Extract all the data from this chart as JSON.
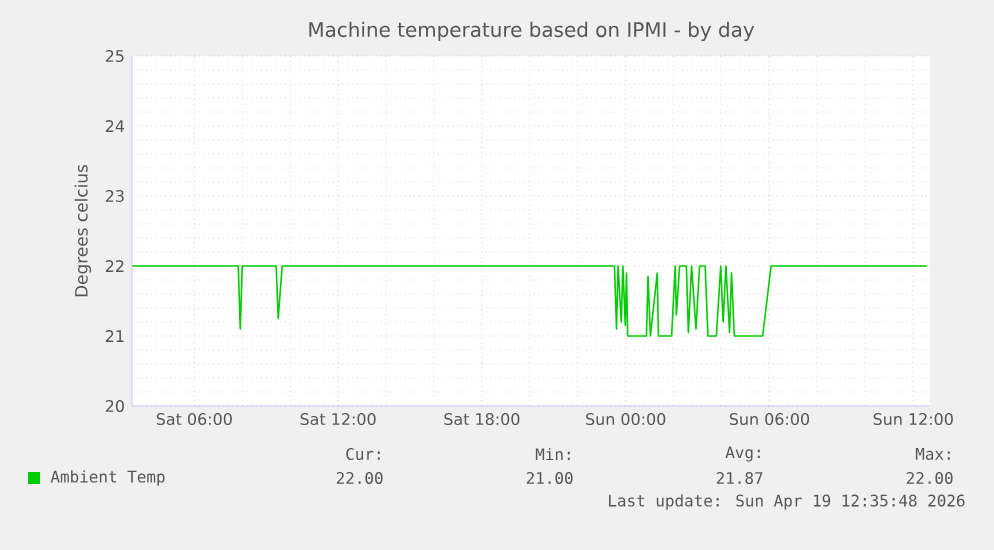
{
  "chart_data": {
    "type": "line",
    "title": "Machine temperature based on IPMI - by day",
    "ylabel": "Degrees celcius",
    "xlim": [
      "2026-04-18T03:24",
      "2026-04-19T12:42"
    ],
    "ylim": [
      20,
      25
    ],
    "xticks": [
      {
        "value": "2026-04-18T06:00",
        "label": "Sat 06:00"
      },
      {
        "value": "2026-04-18T12:00",
        "label": "Sat 12:00"
      },
      {
        "value": "2026-04-18T18:00",
        "label": "Sat 18:00"
      },
      {
        "value": "2026-04-19T00:00",
        "label": "Sun 00:00"
      },
      {
        "value": "2026-04-19T06:00",
        "label": "Sun 06:00"
      },
      {
        "value": "2026-04-19T12:00",
        "label": "Sun 12:00"
      }
    ],
    "yticks": [
      20,
      21,
      22,
      23,
      24,
      25
    ],
    "grid": true,
    "legend": "bottom",
    "line_style": "solid",
    "marker": "none",
    "series": [
      {
        "name": "Ambient Temp",
        "color": "#00cc00",
        "x": [
          "2026-04-18T03:25",
          "2026-04-18T07:50",
          "2026-04-18T07:55",
          "2026-04-18T08:00",
          "2026-04-18T09:25",
          "2026-04-18T09:30",
          "2026-04-18T09:40",
          "2026-04-18T23:32",
          "2026-04-18T23:37",
          "2026-04-18T23:41",
          "2026-04-18T23:49",
          "2026-04-18T23:53",
          "2026-04-18T23:59",
          "2026-04-19T00:02",
          "2026-04-19T00:05",
          "2026-04-19T00:52",
          "2026-04-19T00:56",
          "2026-04-19T01:02",
          "2026-04-19T01:19",
          "2026-04-19T01:22",
          "2026-04-19T01:55",
          "2026-04-19T02:04",
          "2026-04-19T02:07",
          "2026-04-19T02:15",
          "2026-04-19T02:32",
          "2026-04-19T02:37",
          "2026-04-19T02:45",
          "2026-04-19T02:56",
          "2026-04-19T03:05",
          "2026-04-19T03:19",
          "2026-04-19T03:26",
          "2026-04-19T03:47",
          "2026-04-19T03:58",
          "2026-04-19T04:04",
          "2026-04-19T04:11",
          "2026-04-19T04:20",
          "2026-04-19T04:25",
          "2026-04-19T04:32",
          "2026-04-19T05:43",
          "2026-04-19T06:04",
          "2026-04-19T12:35"
        ],
        "values": [
          22,
          22,
          21.1,
          22,
          22,
          21.25,
          22,
          22,
          21.1,
          22,
          21.2,
          22,
          21.15,
          21.9,
          21,
          21,
          21.85,
          21,
          21.9,
          21,
          21,
          22,
          21.3,
          22,
          22,
          21.05,
          22,
          21.1,
          22,
          22,
          21,
          21,
          22,
          21.2,
          22,
          21.05,
          21.9,
          21,
          21,
          22,
          22
        ]
      }
    ],
    "annotations": [
      "Cur:",
      "Min:",
      "Avg:",
      "Max:",
      "22.00",
      "21.00",
      "21.87",
      "22.00",
      "Last update: Sun Apr 19 12:35:48 2026"
    ]
  }
}
